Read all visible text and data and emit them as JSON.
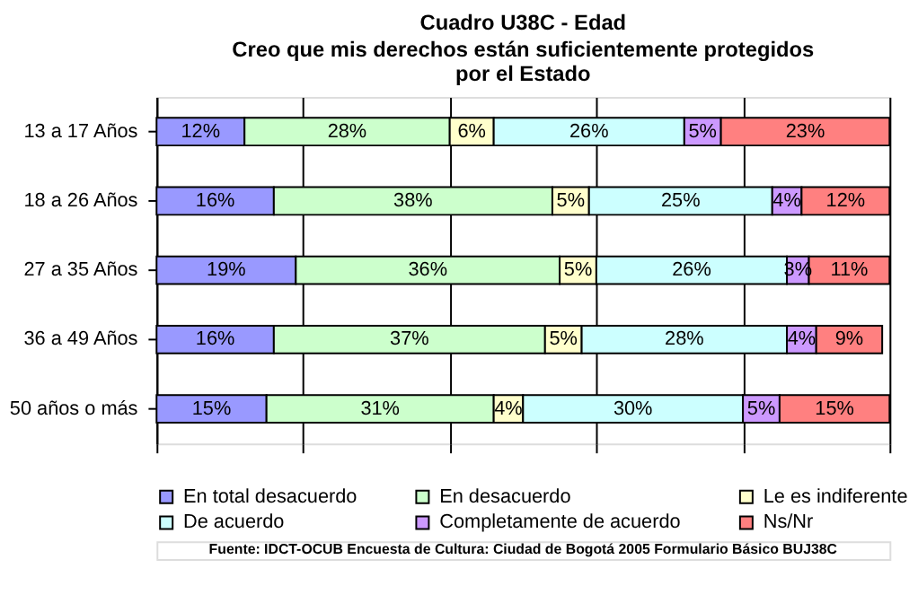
{
  "chart_data": {
    "type": "bar",
    "orientation": "horizontal",
    "stacked": true,
    "title": "Cuadro U38C - Edad",
    "subtitle": "Creo que mis derechos están suficientemente protegidos por el Estado",
    "categories": [
      "13 a 17 Años",
      "18 a 26 Años",
      "27 a 35 Años",
      "36 a 49 Años",
      "50 años o más"
    ],
    "series": [
      {
        "name": "En total desacuerdo",
        "color": "#9999ff",
        "values": [
          12,
          16,
          19,
          16,
          15
        ],
        "value_labels": [
          "12%",
          "16%",
          "19%",
          "16%",
          "15%"
        ]
      },
      {
        "name": "En desacuerdo",
        "color": "#ccffcc",
        "values": [
          28,
          38,
          36,
          37,
          31
        ],
        "value_labels": [
          "28%",
          "38%",
          "36%",
          "37%",
          "31%"
        ]
      },
      {
        "name": "Le es indiferente",
        "color": "#ffffcc",
        "values": [
          6,
          5,
          5,
          5,
          4
        ],
        "value_labels": [
          "6%",
          "5%",
          "5%",
          "5%",
          "4%"
        ]
      },
      {
        "name": "De acuerdo",
        "color": "#ccffff",
        "values": [
          26,
          25,
          26,
          28,
          30
        ],
        "value_labels": [
          "26%",
          "25%",
          "26%",
          "28%",
          "30%"
        ]
      },
      {
        "name": "Completamente de acuerdo",
        "color": "#cc99ff",
        "values": [
          5,
          4,
          3,
          4,
          5
        ],
        "value_labels": [
          "5%",
          "4%",
          "3%",
          "4%",
          "5%"
        ]
      },
      {
        "name": "Ns/Nr",
        "color": "#ff8080",
        "values": [
          23,
          12,
          11,
          9,
          15
        ],
        "value_labels": [
          "23%",
          "12%",
          "11%",
          "9%",
          "15%"
        ]
      }
    ],
    "tick_labels": "y",
    "grid": "x",
    "legend": "bottom",
    "annotations": [
      "Fuente: IDCT-OCUB Encuesta de Cultura: Ciudad de Bogotá 2005 Formulario Básico BUJ38C"
    ]
  }
}
